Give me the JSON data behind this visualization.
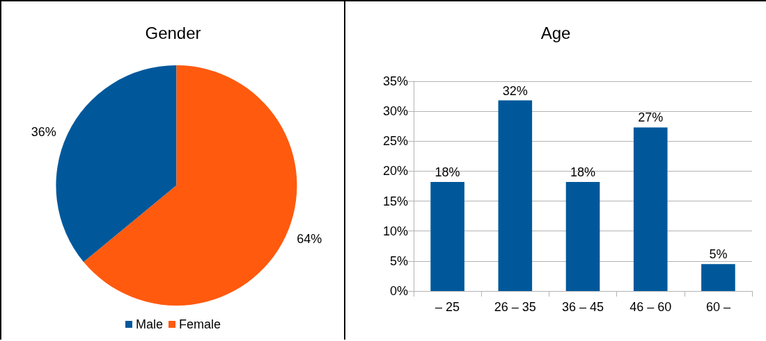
{
  "chart_data": [
    {
      "type": "pie",
      "title": "Gender",
      "categories": [
        "Male",
        "Female"
      ],
      "values": [
        36,
        64
      ],
      "colors": [
        "#00589b",
        "#ff5a0e"
      ],
      "value_labels": [
        "36%",
        "64%"
      ],
      "legend": "bottom"
    },
    {
      "type": "bar",
      "title": "Age",
      "categories": [
        "– 25",
        "26 – 35",
        "36 – 45",
        "46 – 60",
        "60 –"
      ],
      "values": [
        18.2,
        31.8,
        18.2,
        27.3,
        4.5
      ],
      "color": "#00589b",
      "value_labels": [
        "18%",
        "32%",
        "18%",
        "27%",
        "5%"
      ],
      "ylim": [
        0,
        35
      ],
      "yticks": [
        {
          "value": 0,
          "label": "0%"
        },
        {
          "value": 5,
          "label": "5%"
        },
        {
          "value": 10,
          "label": "10%"
        },
        {
          "value": 15,
          "label": "15%"
        },
        {
          "value": 20,
          "label": "20%"
        },
        {
          "value": 25,
          "label": "25%"
        },
        {
          "value": 30,
          "label": "30%"
        },
        {
          "value": 35,
          "label": "35%"
        }
      ],
      "grid": "y",
      "legend": false
    }
  ]
}
